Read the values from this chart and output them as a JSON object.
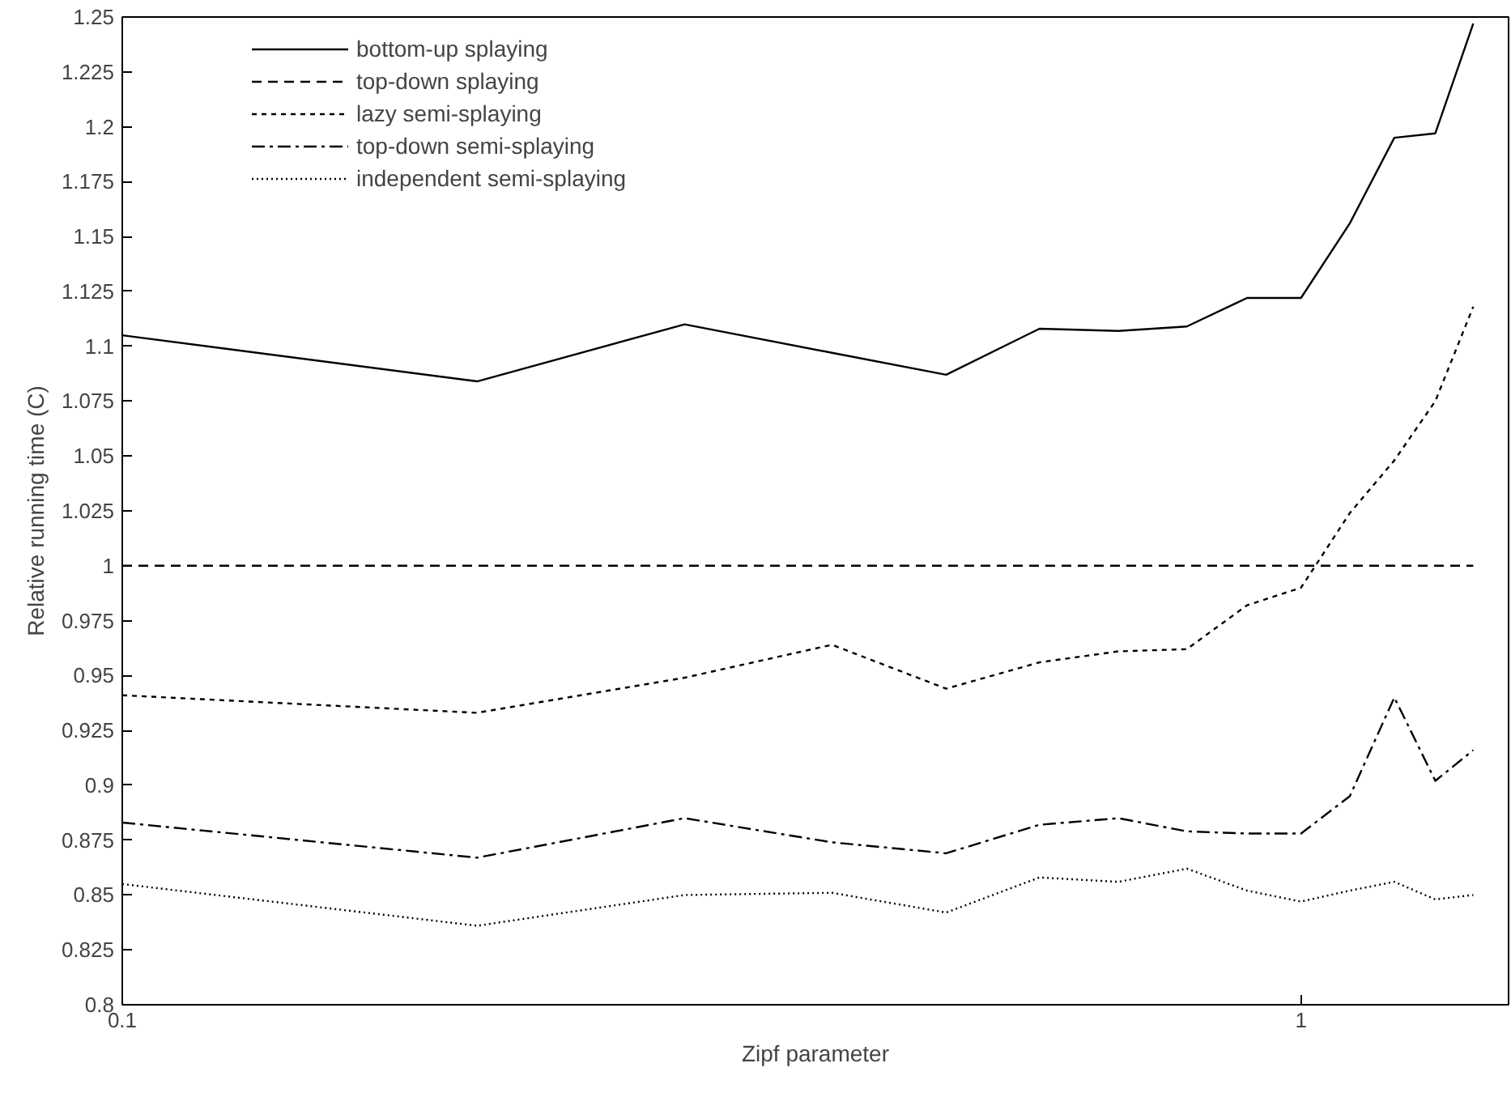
{
  "chart_data": {
    "type": "line",
    "xlabel": "Zipf parameter",
    "ylabel": "Relative running time (C)",
    "x": [
      0.1,
      0.2,
      0.3,
      0.4,
      0.5,
      0.6,
      0.7,
      0.8,
      0.9,
      1.0,
      1.1,
      1.2,
      1.3,
      1.4
    ],
    "log": "x",
    "xlim": [
      0.1,
      1.5
    ],
    "xticks": [
      0.1,
      1
    ],
    "ylim": [
      0.8,
      1.25
    ],
    "yticks": [
      0.8,
      0.825,
      0.85,
      0.875,
      0.9,
      0.925,
      0.95,
      0.975,
      1,
      1.025,
      1.05,
      1.075,
      1.1,
      1.125,
      1.15,
      1.175,
      1.2,
      1.225,
      1.25
    ],
    "grid": false,
    "legend": "top left",
    "marker": "none",
    "series": [
      {
        "name": "bottom-up splaying",
        "color": "#000000",
        "line_style": "solid",
        "values": [
          1.105,
          1.084,
          1.11,
          1.097,
          1.087,
          1.108,
          1.107,
          1.109,
          1.122,
          1.122,
          1.156,
          1.195,
          1.197,
          1.247
        ]
      },
      {
        "name": "top-down splaying",
        "color": "#000000",
        "line_style": "dashed",
        "values": [
          1,
          1,
          1,
          1,
          1,
          1,
          1,
          1,
          1,
          1,
          1,
          1,
          1,
          1
        ]
      },
      {
        "name": "lazy semi-splaying",
        "color": "#000000",
        "line_style": "dotted",
        "values": [
          0.941,
          0.933,
          0.949,
          0.964,
          0.944,
          0.956,
          0.961,
          0.962,
          0.982,
          0.99,
          1.024,
          1.048,
          1.075,
          1.118
        ]
      },
      {
        "name": "top-down semi-splaying",
        "color": "#000000",
        "line_style": "dashdot",
        "values": [
          0.883,
          0.867,
          0.885,
          0.874,
          0.869,
          0.882,
          0.885,
          0.879,
          0.878,
          0.878,
          0.895,
          0.94,
          0.902,
          0.916
        ]
      },
      {
        "name": "independent semi-splaying",
        "color": "#000000",
        "line_style": "finedot",
        "values": [
          0.855,
          0.836,
          0.85,
          0.851,
          0.842,
          0.858,
          0.856,
          0.862,
          0.852,
          0.847,
          0.852,
          0.856,
          0.848,
          0.85
        ]
      }
    ]
  }
}
